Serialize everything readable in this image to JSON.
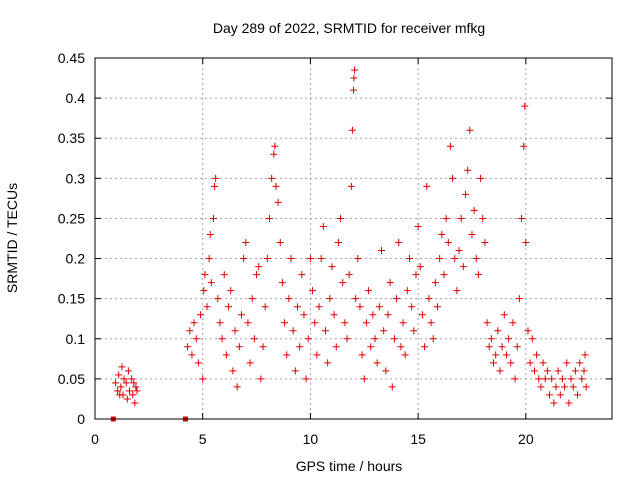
{
  "chart_data": {
    "type": "scatter",
    "title": "Day 289 of 2022, SRMTID for receiver mfkg",
    "xlabel": "GPS time / hours",
    "ylabel": "SRMTID / TECUs",
    "xlim": [
      0,
      24.0
    ],
    "ylim": [
      0,
      0.45
    ],
    "grid": true,
    "marker": "plus",
    "color": "#e00000",
    "x_ticks": [
      0,
      5,
      10,
      15,
      20
    ],
    "x_tick_labels": [
      "0",
      "5",
      "10",
      "15",
      "20"
    ],
    "y_ticks": [
      0,
      0.05,
      0.1,
      0.15,
      0.2,
      0.25,
      0.3,
      0.35,
      0.4,
      0.45
    ],
    "y_tick_labels": [
      "0",
      "0.05",
      "0.1",
      "0.15",
      "0.2",
      "0.25",
      "0.3",
      "0.35",
      "0.4",
      "0.45"
    ],
    "series": [
      {
        "name": "SRMTID",
        "points": [
          [
            0.85,
            0.0
          ],
          [
            4.2,
            0.0
          ],
          [
            0.95,
            0.045
          ],
          [
            1.05,
            0.035
          ],
          [
            1.1,
            0.055
          ],
          [
            1.2,
            0.04
          ],
          [
            1.25,
            0.065
          ],
          [
            1.3,
            0.03
          ],
          [
            1.35,
            0.05
          ],
          [
            1.45,
            0.045
          ],
          [
            1.5,
            0.025
          ],
          [
            1.55,
            0.06
          ],
          [
            1.6,
            0.035
          ],
          [
            1.7,
            0.05
          ],
          [
            1.75,
            0.03
          ],
          [
            1.8,
            0.045
          ],
          [
            1.85,
            0.02
          ],
          [
            1.9,
            0.04
          ],
          [
            1.95,
            0.035
          ],
          [
            1.15,
            0.03
          ],
          [
            4.3,
            0.09
          ],
          [
            4.4,
            0.11
          ],
          [
            4.5,
            0.08
          ],
          [
            4.6,
            0.12
          ],
          [
            4.7,
            0.1
          ],
          [
            4.8,
            0.07
          ],
          [
            4.9,
            0.13
          ],
          [
            5.0,
            0.05
          ],
          [
            5.05,
            0.16
          ],
          [
            5.1,
            0.18
          ],
          [
            5.2,
            0.14
          ],
          [
            5.3,
            0.2
          ],
          [
            5.35,
            0.23
          ],
          [
            5.4,
            0.17
          ],
          [
            5.5,
            0.25
          ],
          [
            5.55,
            0.29
          ],
          [
            5.6,
            0.3
          ],
          [
            5.7,
            0.15
          ],
          [
            5.8,
            0.12
          ],
          [
            5.9,
            0.1
          ],
          [
            6.0,
            0.18
          ],
          [
            6.1,
            0.08
          ],
          [
            6.2,
            0.14
          ],
          [
            6.3,
            0.16
          ],
          [
            6.4,
            0.06
          ],
          [
            6.5,
            0.11
          ],
          [
            6.6,
            0.04
          ],
          [
            6.7,
            0.09
          ],
          [
            6.8,
            0.13
          ],
          [
            6.9,
            0.2
          ],
          [
            7.0,
            0.22
          ],
          [
            7.1,
            0.12
          ],
          [
            7.2,
            0.07
          ],
          [
            7.3,
            0.15
          ],
          [
            7.4,
            0.1
          ],
          [
            7.5,
            0.18
          ],
          [
            7.6,
            0.19
          ],
          [
            7.7,
            0.05
          ],
          [
            7.8,
            0.09
          ],
          [
            7.9,
            0.14
          ],
          [
            8.0,
            0.2
          ],
          [
            8.1,
            0.25
          ],
          [
            8.2,
            0.3
          ],
          [
            8.3,
            0.33
          ],
          [
            8.35,
            0.34
          ],
          [
            8.4,
            0.29
          ],
          [
            8.5,
            0.27
          ],
          [
            8.6,
            0.22
          ],
          [
            8.7,
            0.17
          ],
          [
            8.8,
            0.12
          ],
          [
            8.9,
            0.08
          ],
          [
            9.0,
            0.15
          ],
          [
            9.1,
            0.2
          ],
          [
            9.2,
            0.11
          ],
          [
            9.3,
            0.06
          ],
          [
            9.4,
            0.14
          ],
          [
            9.5,
            0.09
          ],
          [
            9.6,
            0.18
          ],
          [
            9.7,
            0.13
          ],
          [
            9.8,
            0.05
          ],
          [
            9.9,
            0.1
          ],
          [
            10.0,
            0.2
          ],
          [
            10.1,
            0.16
          ],
          [
            10.2,
            0.12
          ],
          [
            10.3,
            0.08
          ],
          [
            10.4,
            0.14
          ],
          [
            10.5,
            0.2
          ],
          [
            10.6,
            0.24
          ],
          [
            10.7,
            0.11
          ],
          [
            10.8,
            0.07
          ],
          [
            10.9,
            0.15
          ],
          [
            11.0,
            0.19
          ],
          [
            11.1,
            0.13
          ],
          [
            11.2,
            0.09
          ],
          [
            11.3,
            0.22
          ],
          [
            11.4,
            0.25
          ],
          [
            11.5,
            0.17
          ],
          [
            11.6,
            0.12
          ],
          [
            11.7,
            0.1
          ],
          [
            11.8,
            0.18
          ],
          [
            11.9,
            0.29
          ],
          [
            11.95,
            0.36
          ],
          [
            12.0,
            0.41
          ],
          [
            12.02,
            0.425
          ],
          [
            12.05,
            0.435
          ],
          [
            12.1,
            0.15
          ],
          [
            12.2,
            0.2
          ],
          [
            12.3,
            0.14
          ],
          [
            12.4,
            0.08
          ],
          [
            12.5,
            0.05
          ],
          [
            12.6,
            0.12
          ],
          [
            12.7,
            0.16
          ],
          [
            12.8,
            0.09
          ],
          [
            12.9,
            0.13
          ],
          [
            13.0,
            0.1
          ],
          [
            13.1,
            0.07
          ],
          [
            13.2,
            0.14
          ],
          [
            13.3,
            0.21
          ],
          [
            13.4,
            0.11
          ],
          [
            13.5,
            0.06
          ],
          [
            13.6,
            0.13
          ],
          [
            13.7,
            0.17
          ],
          [
            13.8,
            0.04
          ],
          [
            13.9,
            0.1
          ],
          [
            14.0,
            0.15
          ],
          [
            14.1,
            0.22
          ],
          [
            14.2,
            0.09
          ],
          [
            14.3,
            0.12
          ],
          [
            14.4,
            0.08
          ],
          [
            14.5,
            0.16
          ],
          [
            14.6,
            0.2
          ],
          [
            14.7,
            0.14
          ],
          [
            14.8,
            0.11
          ],
          [
            14.9,
            0.18
          ],
          [
            15.0,
            0.24
          ],
          [
            15.1,
            0.19
          ],
          [
            15.2,
            0.13
          ],
          [
            15.3,
            0.09
          ],
          [
            15.4,
            0.29
          ],
          [
            15.5,
            0.15
          ],
          [
            15.6,
            0.12
          ],
          [
            15.7,
            0.1
          ],
          [
            15.8,
            0.17
          ],
          [
            15.9,
            0.14
          ],
          [
            16.0,
            0.2
          ],
          [
            16.1,
            0.23
          ],
          [
            16.2,
            0.18
          ],
          [
            16.3,
            0.25
          ],
          [
            16.4,
            0.22
          ],
          [
            16.5,
            0.34
          ],
          [
            16.6,
            0.3
          ],
          [
            16.7,
            0.2
          ],
          [
            16.8,
            0.16
          ],
          [
            16.9,
            0.21
          ],
          [
            17.0,
            0.25
          ],
          [
            17.1,
            0.19
          ],
          [
            17.2,
            0.28
          ],
          [
            17.3,
            0.31
          ],
          [
            17.4,
            0.36
          ],
          [
            17.5,
            0.23
          ],
          [
            17.6,
            0.26
          ],
          [
            17.7,
            0.2
          ],
          [
            17.8,
            0.18
          ],
          [
            17.9,
            0.3
          ],
          [
            18.0,
            0.25
          ],
          [
            18.1,
            0.22
          ],
          [
            18.2,
            0.12
          ],
          [
            18.3,
            0.09
          ],
          [
            18.4,
            0.1
          ],
          [
            18.5,
            0.07
          ],
          [
            18.6,
            0.08
          ],
          [
            18.7,
            0.11
          ],
          [
            18.8,
            0.06
          ],
          [
            18.9,
            0.09
          ],
          [
            19.0,
            0.13
          ],
          [
            19.1,
            0.08
          ],
          [
            19.2,
            0.1
          ],
          [
            19.3,
            0.07
          ],
          [
            19.4,
            0.12
          ],
          [
            19.5,
            0.05
          ],
          [
            19.6,
            0.09
          ],
          [
            19.7,
            0.15
          ],
          [
            19.8,
            0.25
          ],
          [
            19.9,
            0.34
          ],
          [
            19.95,
            0.39
          ],
          [
            20.0,
            0.22
          ],
          [
            20.1,
            0.11
          ],
          [
            20.2,
            0.07
          ],
          [
            20.3,
            0.1
          ],
          [
            20.4,
            0.06
          ],
          [
            20.5,
            0.08
          ],
          [
            20.6,
            0.05
          ],
          [
            20.7,
            0.04
          ],
          [
            20.8,
            0.07
          ],
          [
            20.9,
            0.05
          ],
          [
            21.0,
            0.06
          ],
          [
            21.1,
            0.03
          ],
          [
            21.2,
            0.05
          ],
          [
            21.3,
            0.02
          ],
          [
            21.4,
            0.04
          ],
          [
            21.5,
            0.06
          ],
          [
            21.6,
            0.03
          ],
          [
            21.7,
            0.05
          ],
          [
            21.8,
            0.04
          ],
          [
            21.9,
            0.07
          ],
          [
            22.0,
            0.02
          ],
          [
            22.1,
            0.05
          ],
          [
            22.2,
            0.04
          ],
          [
            22.3,
            0.06
          ],
          [
            22.4,
            0.03
          ],
          [
            22.5,
            0.07
          ],
          [
            22.6,
            0.05
          ],
          [
            22.7,
            0.06
          ],
          [
            22.75,
            0.08
          ],
          [
            22.8,
            0.04
          ]
        ]
      }
    ]
  }
}
